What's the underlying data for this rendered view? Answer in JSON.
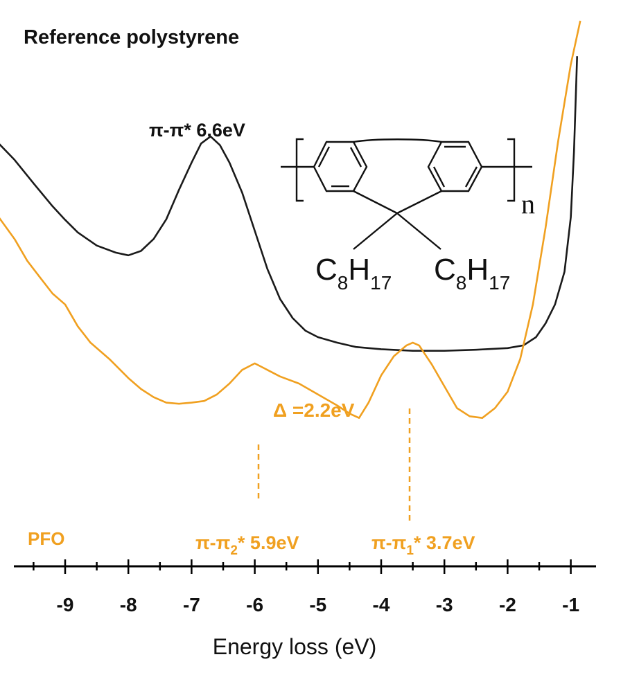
{
  "chart_data": {
    "type": "line",
    "title": "Reference polystyrene",
    "xlabel": "Energy loss (eV)",
    "ylabel": "",
    "xlim": [
      -10,
      -0.8
    ],
    "ylim": [
      0,
      1
    ],
    "x_ticks": [
      -9,
      -8,
      -7,
      -6,
      -5,
      -4,
      -3,
      -2,
      -1
    ],
    "x_tick_labels": [
      "-9",
      "-8",
      "-7",
      "-6",
      "-5",
      "-4",
      "-3",
      "-2",
      "-1"
    ],
    "grid": false,
    "series": [
      {
        "name": "Reference polystyrene",
        "color": "#1a1a1a",
        "points": [
          [
            -10.05,
            0.775
          ],
          [
            -9.8,
            0.745
          ],
          [
            -9.5,
            0.702
          ],
          [
            -9.2,
            0.66
          ],
          [
            -9.0,
            0.635
          ],
          [
            -8.8,
            0.612
          ],
          [
            -8.5,
            0.588
          ],
          [
            -8.2,
            0.575
          ],
          [
            -8.0,
            0.57
          ],
          [
            -7.8,
            0.578
          ],
          [
            -7.6,
            0.6
          ],
          [
            -7.4,
            0.636
          ],
          [
            -7.2,
            0.69
          ],
          [
            -7.0,
            0.74
          ],
          [
            -6.85,
            0.775
          ],
          [
            -6.7,
            0.788
          ],
          [
            -6.55,
            0.772
          ],
          [
            -6.4,
            0.74
          ],
          [
            -6.2,
            0.685
          ],
          [
            -6.0,
            0.615
          ],
          [
            -5.8,
            0.545
          ],
          [
            -5.6,
            0.49
          ],
          [
            -5.4,
            0.455
          ],
          [
            -5.2,
            0.432
          ],
          [
            -5.0,
            0.42
          ],
          [
            -4.7,
            0.41
          ],
          [
            -4.4,
            0.402
          ],
          [
            -4.0,
            0.398
          ],
          [
            -3.5,
            0.395
          ],
          [
            -3.0,
            0.395
          ],
          [
            -2.5,
            0.397
          ],
          [
            -2.0,
            0.4
          ],
          [
            -1.75,
            0.405
          ],
          [
            -1.55,
            0.42
          ],
          [
            -1.4,
            0.445
          ],
          [
            -1.25,
            0.48
          ],
          [
            -1.1,
            0.54
          ],
          [
            -1.0,
            0.64
          ],
          [
            -0.95,
            0.76
          ],
          [
            -0.9,
            0.935
          ]
        ]
      },
      {
        "name": "PFO",
        "color": "#f0a020",
        "points": [
          [
            -10.05,
            0.64
          ],
          [
            -9.8,
            0.6
          ],
          [
            -9.6,
            0.56
          ],
          [
            -9.4,
            0.53
          ],
          [
            -9.2,
            0.5
          ],
          [
            -9.0,
            0.48
          ],
          [
            -8.8,
            0.44
          ],
          [
            -8.6,
            0.41
          ],
          [
            -8.3,
            0.38
          ],
          [
            -8.0,
            0.345
          ],
          [
            -7.8,
            0.325
          ],
          [
            -7.6,
            0.31
          ],
          [
            -7.4,
            0.3
          ],
          [
            -7.2,
            0.298
          ],
          [
            -7.0,
            0.3
          ],
          [
            -6.8,
            0.303
          ],
          [
            -6.6,
            0.315
          ],
          [
            -6.4,
            0.335
          ],
          [
            -6.2,
            0.36
          ],
          [
            -6.0,
            0.372
          ],
          [
            -5.8,
            0.36
          ],
          [
            -5.6,
            0.348
          ],
          [
            -5.3,
            0.335
          ],
          [
            -5.0,
            0.315
          ],
          [
            -4.7,
            0.295
          ],
          [
            -4.5,
            0.28
          ],
          [
            -4.35,
            0.272
          ],
          [
            -4.2,
            0.3
          ],
          [
            -4.0,
            0.35
          ],
          [
            -3.8,
            0.385
          ],
          [
            -3.6,
            0.405
          ],
          [
            -3.5,
            0.41
          ],
          [
            -3.4,
            0.405
          ],
          [
            -3.2,
            0.37
          ],
          [
            -3.0,
            0.33
          ],
          [
            -2.8,
            0.29
          ],
          [
            -2.6,
            0.275
          ],
          [
            -2.4,
            0.272
          ],
          [
            -2.2,
            0.29
          ],
          [
            -2.0,
            0.32
          ],
          [
            -1.8,
            0.38
          ],
          [
            -1.6,
            0.48
          ],
          [
            -1.4,
            0.62
          ],
          [
            -1.2,
            0.78
          ],
          [
            -1.0,
            0.92
          ],
          [
            -0.85,
            1.0
          ]
        ]
      }
    ],
    "annotations": [
      {
        "id": "pp-star",
        "text": "π-π* 6.6eV",
        "x": -6.6
      },
      {
        "id": "pp2",
        "text": "π-π₂* 5.9eV",
        "x": -5.9
      },
      {
        "id": "pp1",
        "text": "π-π₁* 3.7eV",
        "x": -3.55
      },
      {
        "id": "delta",
        "text": "Δ =2.2eV"
      },
      {
        "id": "pfo",
        "text": "PFO"
      }
    ],
    "structure_labels": {
      "repeat": "n",
      "sub_left": "C8H17",
      "sub_right": "C8H17"
    }
  }
}
